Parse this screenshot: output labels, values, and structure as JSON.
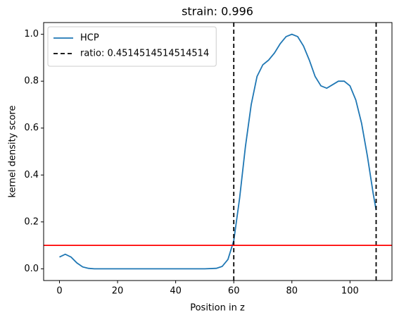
{
  "chart_data": {
    "type": "line",
    "title": "strain: 0.996",
    "x_label": "Position in z",
    "y_label": "kernel density score",
    "series": [
      {
        "name": "HCP",
        "color": "#1f77b4",
        "x": [
          0,
          2,
          4,
          6,
          8,
          10,
          12,
          20,
          30,
          40,
          50,
          54,
          56,
          58,
          60,
          62,
          64,
          66,
          68,
          70,
          72,
          74,
          76,
          78,
          80,
          82,
          84,
          86,
          88,
          90,
          92,
          94,
          96,
          98,
          100,
          102,
          104,
          106,
          108,
          109
        ],
        "values": [
          0.05,
          0.062,
          0.05,
          0.025,
          0.008,
          0.002,
          0,
          0,
          0,
          0,
          0,
          0.002,
          0.01,
          0.04,
          0.12,
          0.3,
          0.52,
          0.7,
          0.82,
          0.87,
          0.89,
          0.92,
          0.96,
          0.99,
          1.0,
          0.99,
          0.95,
          0.89,
          0.82,
          0.78,
          0.77,
          0.785,
          0.8,
          0.8,
          0.78,
          0.72,
          0.62,
          0.48,
          0.32,
          0.25
        ]
      }
    ],
    "vlines": {
      "name": "ratio: 0.4514514514514514",
      "color": "#000000",
      "values": [
        60,
        109
      ]
    },
    "hline": {
      "value": 0.1,
      "color": "#ff0000"
    },
    "legend": "upper left",
    "xlim": [
      -5.45,
      114.45
    ],
    "ylim": [
      -0.05,
      1.05
    ],
    "xticks": [
      0,
      20,
      40,
      60,
      80,
      100
    ],
    "yticks": [
      {
        "value": 0,
        "label": "0.0"
      },
      {
        "value": 0.2,
        "label": "0.2"
      },
      {
        "value": 0.4,
        "label": "0.4"
      },
      {
        "value": 0.6,
        "label": "0.6"
      },
      {
        "value": 0.8,
        "label": "0.8"
      },
      {
        "value": 1.0,
        "label": "1.0"
      }
    ]
  }
}
